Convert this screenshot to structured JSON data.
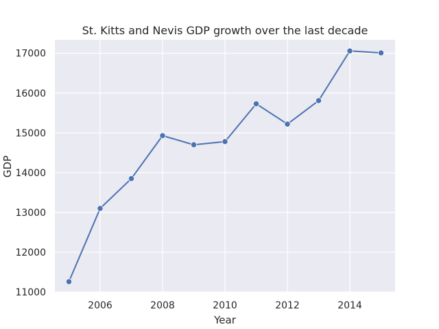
{
  "chart_data": {
    "type": "line",
    "title": "St. Kitts and Nevis GDP growth over the last decade",
    "xlabel": "Year",
    "ylabel": "GDP",
    "x": [
      2005,
      2006,
      2007,
      2008,
      2009,
      2010,
      2011,
      2012,
      2013,
      2014,
      2015
    ],
    "series": [
      {
        "values": [
          11260,
          13100,
          13850,
          14930,
          14700,
          14780,
          15730,
          15220,
          15810,
          17060,
          17010
        ]
      }
    ],
    "xlim": [
      2004.55,
      2015.45
    ],
    "ylim": [
      11000,
      17340
    ],
    "xticks": [
      2006,
      2008,
      2010,
      2012,
      2014
    ],
    "yticks": [
      11000,
      12000,
      13000,
      14000,
      15000,
      16000,
      17000
    ],
    "grid": true,
    "legend": "none",
    "colors": {
      "plot_background": "#eaeaf2",
      "grid": "#ffffff",
      "line": "#4c72b0",
      "text": "#262626"
    }
  }
}
